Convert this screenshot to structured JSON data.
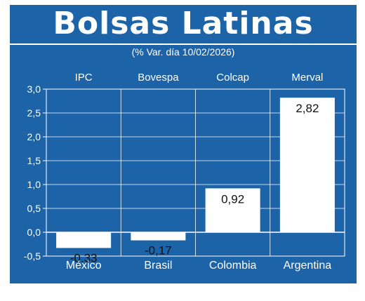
{
  "header": {
    "title": "Bolsas Latinas",
    "subtitle": "(% Var. día 10/02/2026)"
  },
  "colors": {
    "background": "#1c63a8",
    "bar": "#ffffff",
    "text": "#ffffff",
    "label_text": "#111111"
  },
  "chart_data": {
    "type": "bar",
    "categories": [
      "México",
      "Brasil",
      "Colombia",
      "Argentina"
    ],
    "index_labels": [
      "IPC",
      "Bovespa",
      "Colcap",
      "Merval"
    ],
    "values": [
      -0.33,
      -0.17,
      0.92,
      2.82
    ],
    "value_labels": [
      "-0,33",
      "-0,17",
      "0,92",
      "2,82"
    ],
    "yticks": [
      "3,0",
      "2,5",
      "2,0",
      "1,5",
      "1,0",
      "0,5",
      "0,0",
      "-0,5"
    ],
    "ytick_values": [
      3.0,
      2.5,
      2.0,
      1.5,
      1.0,
      0.5,
      0.0,
      -0.5
    ],
    "ylim": [
      -0.5,
      3.0
    ],
    "grid": true
  }
}
